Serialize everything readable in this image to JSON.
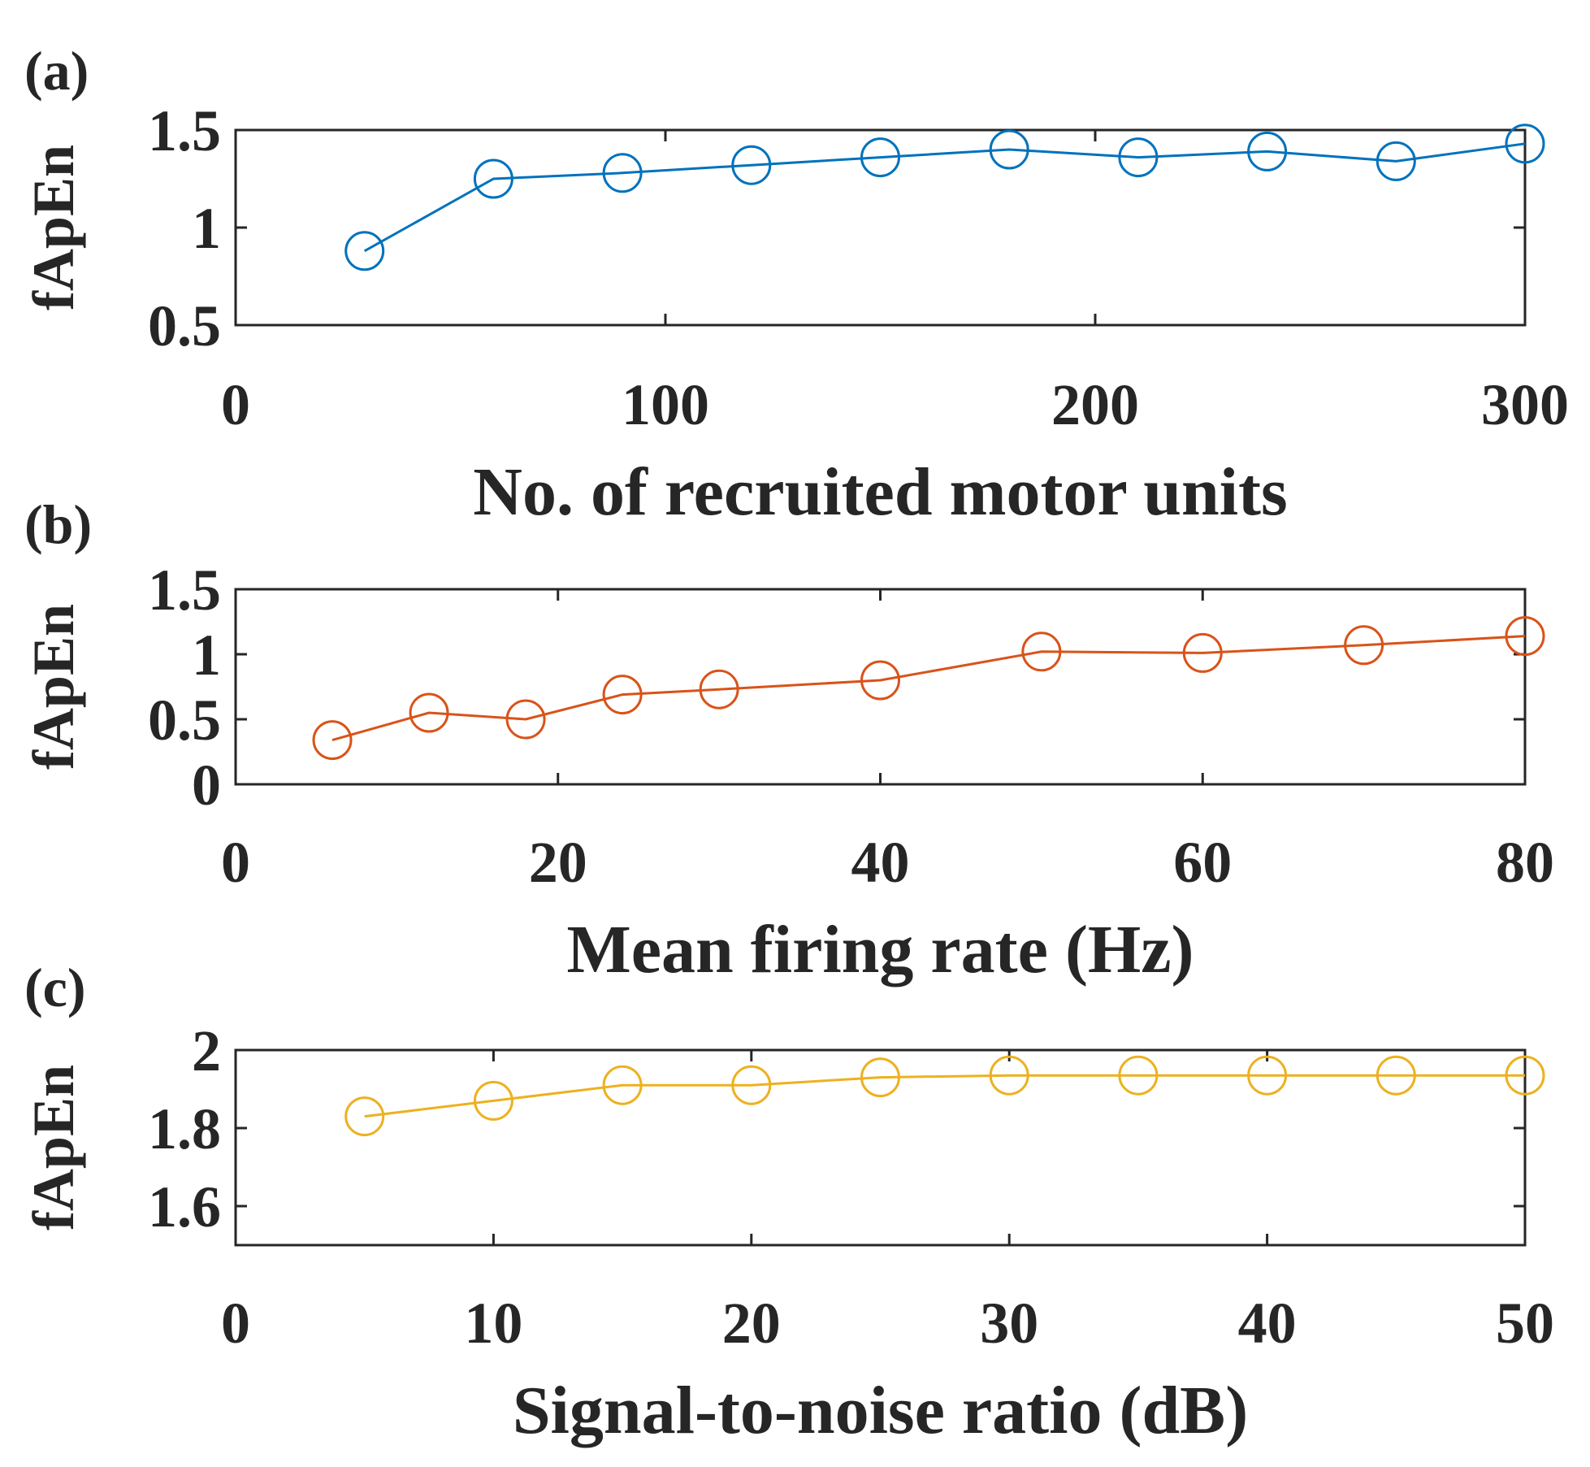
{
  "chart_data": [
    {
      "panel_label": "(a)",
      "type": "line",
      "marker": "circle",
      "color": "#0072BD",
      "xlabel": "No. of recruited motor units",
      "ylabel": "fApEn",
      "xlim": [
        0,
        300
      ],
      "ylim": [
        0.5,
        1.5
      ],
      "xticks": [
        0,
        100,
        200,
        300
      ],
      "xtick_labels": [
        "0",
        "100",
        "200",
        "300"
      ],
      "yticks": [
        0.5,
        1,
        1.5
      ],
      "ytick_labels": [
        "0.5",
        "1",
        "1.5"
      ],
      "x": [
        30,
        60,
        90,
        120,
        150,
        180,
        210,
        240,
        270,
        300
      ],
      "y": [
        0.88,
        1.25,
        1.28,
        1.32,
        1.36,
        1.4,
        1.36,
        1.39,
        1.34,
        1.43
      ]
    },
    {
      "panel_label": "(b)",
      "type": "line",
      "marker": "circle",
      "color": "#D95319",
      "xlabel": "Mean firing rate (Hz)",
      "ylabel": "fApEn",
      "xlim": [
        0,
        80
      ],
      "ylim": [
        0,
        1.5
      ],
      "xticks": [
        0,
        20,
        40,
        60,
        80
      ],
      "xtick_labels": [
        "0",
        "20",
        "40",
        "60",
        "80"
      ],
      "yticks": [
        0,
        0.5,
        1,
        1.5
      ],
      "ytick_labels": [
        "0",
        "0.5",
        "1",
        "1.5"
      ],
      "x": [
        6,
        12,
        18,
        24,
        30,
        40,
        50,
        60,
        70,
        80
      ],
      "y": [
        0.34,
        0.55,
        0.5,
        0.69,
        0.73,
        0.8,
        1.02,
        1.01,
        1.07,
        1.14
      ]
    },
    {
      "panel_label": "(c)",
      "type": "line",
      "marker": "circle",
      "color": "#EDB120",
      "xlabel": "Signal-to-noise ratio (dB)",
      "ylabel": "fApEn",
      "xlim": [
        0,
        50
      ],
      "ylim": [
        1.5,
        2
      ],
      "xticks": [
        0,
        10,
        20,
        30,
        40,
        50
      ],
      "xtick_labels": [
        "0",
        "10",
        "20",
        "30",
        "40",
        "50"
      ],
      "yticks": [
        1.6,
        1.8,
        2
      ],
      "ytick_labels": [
        "1.6",
        "1.8",
        "2"
      ],
      "x": [
        5,
        10,
        15,
        20,
        25,
        30,
        35,
        40,
        45,
        50
      ],
      "y": [
        1.83,
        1.87,
        1.91,
        1.91,
        1.93,
        1.935,
        1.935,
        1.935,
        1.935,
        1.935
      ]
    }
  ]
}
